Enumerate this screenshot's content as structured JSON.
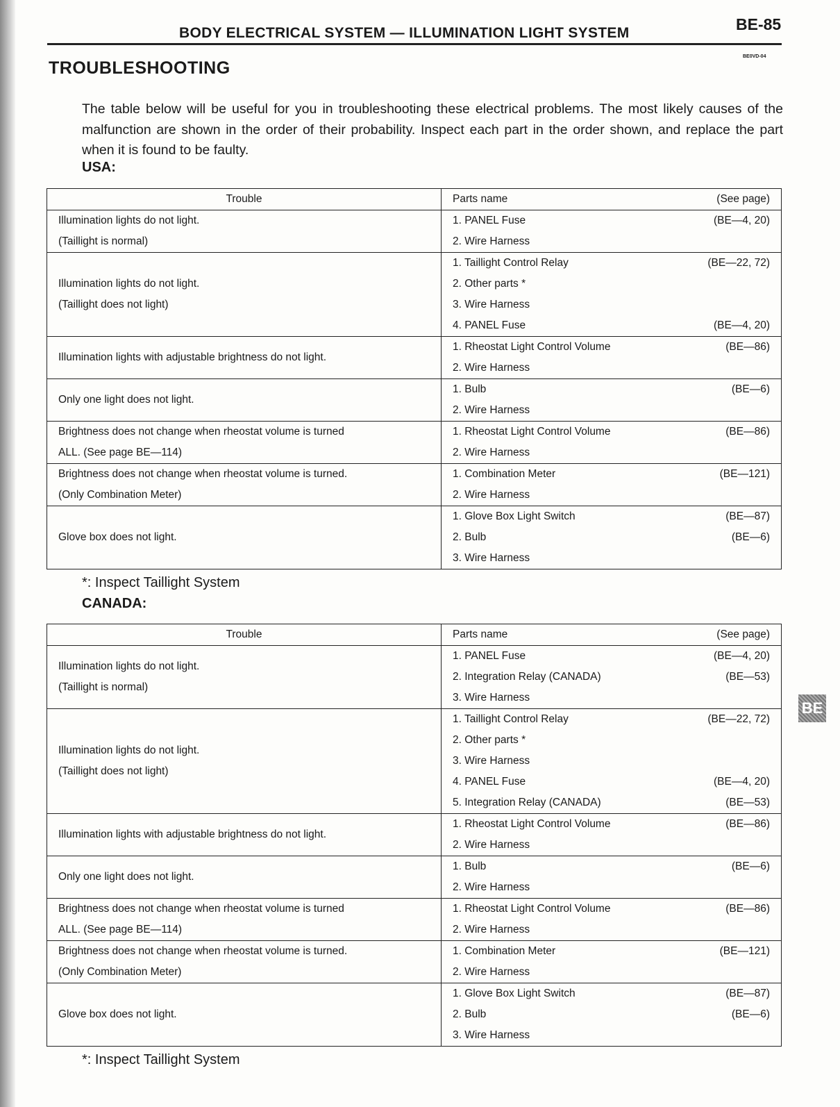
{
  "header": {
    "section": "BODY ELECTRICAL SYSTEM — ILLUMINATION LIGHT SYSTEM",
    "page_number": "BE-85",
    "code": "BE0VD-04"
  },
  "title": "TROUBLESHOOTING",
  "intro": "The table below will be useful for you in troubleshooting these electrical problems. The most likely causes of the malfunction are shown in the order of their probability. Inspect each part in the order shown, and replace the part when it is found to be faulty.",
  "side_tab": "BE",
  "columns": {
    "trouble": "Trouble",
    "parts": "Parts name",
    "page": "(See page)"
  },
  "footnote": "*: Inspect Taillight System",
  "tables": [
    {
      "region": "USA:",
      "rows": [
        {
          "trouble": [
            "Illumination lights do not light.",
            "(Taillight is normal)"
          ],
          "parts": [
            [
              "1. PANEL Fuse",
              "(BE—4, 20)"
            ],
            [
              "2. Wire Harness",
              ""
            ]
          ]
        },
        {
          "trouble": [
            "Illumination lights do not light.",
            "(Taillight does not light)"
          ],
          "parts": [
            [
              "1. Taillight Control Relay",
              "(BE—22, 72)"
            ],
            [
              "2. Other parts *",
              ""
            ],
            [
              "3. Wire Harness",
              ""
            ],
            [
              "4. PANEL Fuse",
              "(BE—4, 20)"
            ]
          ]
        },
        {
          "trouble": [
            "Illumination lights with adjustable brightness do not light."
          ],
          "parts": [
            [
              "1. Rheostat Light Control Volume",
              "(BE—86)"
            ],
            [
              "2. Wire Harness",
              ""
            ]
          ]
        },
        {
          "trouble": [
            "Only one light does not light."
          ],
          "parts": [
            [
              "1. Bulb",
              "(BE—6)"
            ],
            [
              "2. Wire Harness",
              ""
            ]
          ]
        },
        {
          "trouble": [
            "Brightness does not change when rheostat volume is turned",
            "ALL. (See page BE—114)"
          ],
          "parts": [
            [
              "1. Rheostat Light Control Volume",
              "(BE—86)"
            ],
            [
              "2. Wire Harness",
              ""
            ]
          ]
        },
        {
          "trouble": [
            "Brightness does not change when rheostat volume is turned.",
            "(Only Combination Meter)"
          ],
          "parts": [
            [
              "1. Combination Meter",
              "(BE—121)"
            ],
            [
              "2. Wire Harness",
              ""
            ]
          ]
        },
        {
          "trouble": [
            "Glove box does not light."
          ],
          "parts": [
            [
              "1. Glove Box Light Switch",
              "(BE—87)"
            ],
            [
              "2. Bulb",
              "(BE—6)"
            ],
            [
              "3. Wire Harness",
              ""
            ]
          ]
        }
      ]
    },
    {
      "region": "CANADA:",
      "rows": [
        {
          "trouble": [
            "Illumination lights do not light.",
            "(Taillight is normal)"
          ],
          "parts": [
            [
              "1. PANEL Fuse",
              "(BE—4, 20)"
            ],
            [
              "2. Integration Relay (CANADA)",
              "(BE—53)"
            ],
            [
              "3. Wire Harness",
              ""
            ]
          ]
        },
        {
          "trouble": [
            "Illumination lights do not light.",
            "(Taillight does not light)"
          ],
          "parts": [
            [
              "1. Taillight Control Relay",
              "(BE—22, 72)"
            ],
            [
              "2. Other parts *",
              ""
            ],
            [
              "3. Wire Harness",
              ""
            ],
            [
              "4. PANEL Fuse",
              "(BE—4, 20)"
            ],
            [
              "5. Integration Relay (CANADA)",
              "(BE—53)"
            ]
          ]
        },
        {
          "trouble": [
            "Illumination lights with adjustable brightness do not light."
          ],
          "parts": [
            [
              "1. Rheostat Light Control Volume",
              "(BE—86)"
            ],
            [
              "2. Wire Harness",
              ""
            ]
          ]
        },
        {
          "trouble": [
            "Only one light does not light."
          ],
          "parts": [
            [
              "1. Bulb",
              "(BE—6)"
            ],
            [
              "2. Wire Harness",
              ""
            ]
          ]
        },
        {
          "trouble": [
            "Brightness does not change when rheostat volume is turned",
            "ALL. (See page BE—114)"
          ],
          "parts": [
            [
              "1. Rheostat Light Control Volume",
              "(BE—86)"
            ],
            [
              "2. Wire Harness",
              ""
            ]
          ]
        },
        {
          "trouble": [
            "Brightness does not change when rheostat volume is turned.",
            "(Only Combination Meter)"
          ],
          "parts": [
            [
              "1. Combination Meter",
              "(BE—121)"
            ],
            [
              "2. Wire Harness",
              ""
            ]
          ]
        },
        {
          "trouble": [
            "Glove box does not light."
          ],
          "parts": [
            [
              "1. Glove Box Light Switch",
              "(BE—87)"
            ],
            [
              "2. Bulb",
              "(BE—6)"
            ],
            [
              "3. Wire Harness",
              ""
            ]
          ]
        }
      ]
    }
  ]
}
